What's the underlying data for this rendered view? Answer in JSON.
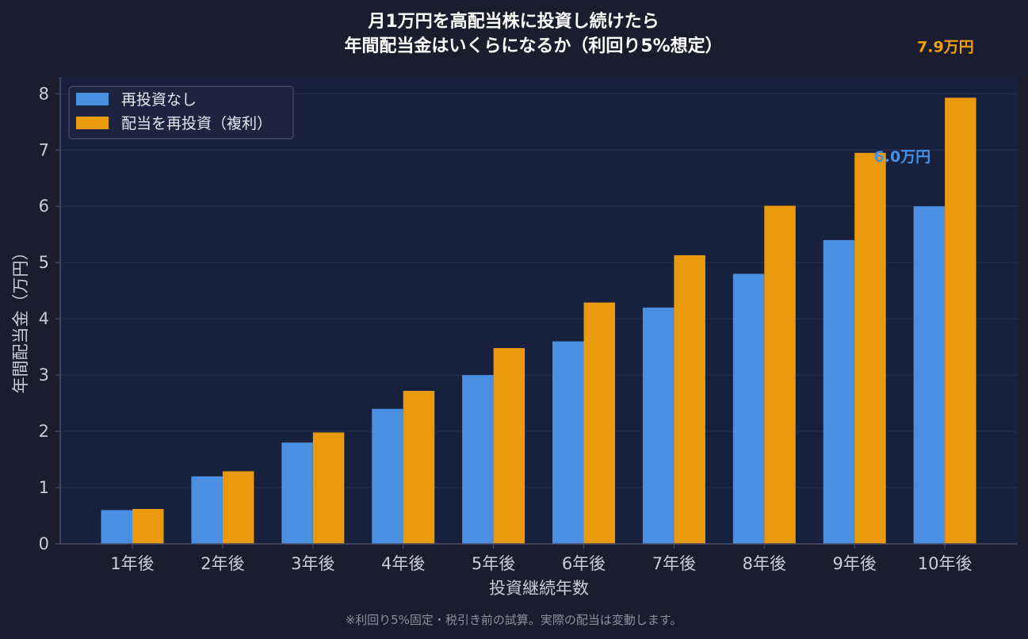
{
  "chart_data": {
    "type": "bar",
    "title": [
      "月1万円を高配当株に投資し続けたら",
      "年間配当金はいくらになるか（利回り5%想定）"
    ],
    "xlabel": "投資継続年数",
    "ylabel": "年間配当金（万円）",
    "categories": [
      "1年後",
      "2年後",
      "3年後",
      "4年後",
      "5年後",
      "6年後",
      "7年後",
      "8年後",
      "9年後",
      "10年後"
    ],
    "series": [
      {
        "name": "再投資なし",
        "color": "#4a8fe2",
        "values": [
          0.6,
          1.2,
          1.8,
          2.4,
          3.0,
          3.6,
          4.2,
          4.8,
          5.4,
          6.0
        ]
      },
      {
        "name": "配当を再投資（複利）",
        "color": "#e8990c",
        "values": [
          0.62,
          1.29,
          1.98,
          2.72,
          3.48,
          4.29,
          5.13,
          6.01,
          6.95,
          7.93
        ]
      }
    ],
    "ylim": [
      0,
      8.3
    ],
    "yticks": [
      "0",
      "1",
      "2",
      "3",
      "4",
      "5",
      "6",
      "7",
      "8"
    ],
    "grid": true,
    "legend": "top-left",
    "annotations": [
      {
        "text": "6.0万円",
        "series": 0,
        "index": 9,
        "color": "#4a90e2"
      },
      {
        "text": "7.9万円",
        "series": 1,
        "index": 9,
        "color": "#f0a010"
      }
    ],
    "footnote": "※利回り5%固定・税引き前の試算。実際の配当は変動します。",
    "colors": {
      "background": "#1b1c2e",
      "plot_background": "#17213d",
      "grid": "#26304f",
      "axis": "#4b4f6a"
    }
  }
}
